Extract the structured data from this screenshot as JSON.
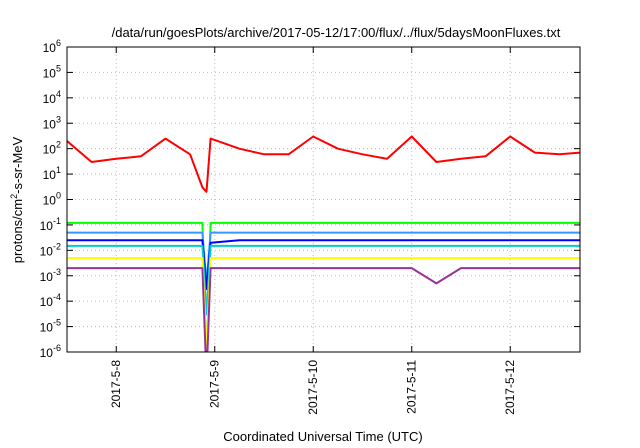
{
  "chart_data": {
    "type": "line",
    "title": "/data/run/goesPlots/archive/2017-05-12/17:00/flux/../flux/5daysMoonFluxes.txt",
    "xlabel": "Coordinated Universal Time (UTC)",
    "ylabel": "protons/cm²-s-sr-MeV",
    "ylabel_parts": {
      "pre": "protons/cm",
      "sup": "2",
      "post": "-s-sr-MeV"
    },
    "yscale": "log",
    "ylim": [
      1e-06,
      1000000.0
    ],
    "xlim": [
      "2017-05-07 12:00",
      "2017-05-12 17:00"
    ],
    "grid": true,
    "x_ticks": [
      "2017-5-8",
      "2017-5-9",
      "2017-5-10",
      "2017-5-11",
      "2017-5-12"
    ],
    "x_tick_dates": [
      "2017-05-08",
      "2017-05-09",
      "2017-05-10",
      "2017-05-11",
      "2017-05-12"
    ],
    "y_ticks": [
      {
        "base": "10",
        "exp": "-6"
      },
      {
        "base": "10",
        "exp": "-5"
      },
      {
        "base": "10",
        "exp": "-4"
      },
      {
        "base": "10",
        "exp": "-3"
      },
      {
        "base": "10",
        "exp": "-2"
      },
      {
        "base": "10",
        "exp": "-1"
      },
      {
        "base": "10",
        "exp": "0"
      },
      {
        "base": "10",
        "exp": "1"
      },
      {
        "base": "10",
        "exp": "2"
      },
      {
        "base": "10",
        "exp": "3"
      },
      {
        "base": "10",
        "exp": "4"
      },
      {
        "base": "10",
        "exp": "5"
      },
      {
        "base": "10",
        "exp": "6"
      }
    ],
    "x": [
      "2017-05-07 12:00",
      "2017-05-07 18:00",
      "2017-05-08 00:00",
      "2017-05-08 06:00",
      "2017-05-08 12:00",
      "2017-05-08 18:00",
      "2017-05-08 21:00",
      "2017-05-08 22:00",
      "2017-05-08 23:00",
      "2017-05-09 06:00",
      "2017-05-09 12:00",
      "2017-05-09 18:00",
      "2017-05-10 00:00",
      "2017-05-10 06:00",
      "2017-05-10 12:00",
      "2017-05-10 18:00",
      "2017-05-11 00:00",
      "2017-05-11 06:00",
      "2017-05-11 12:00",
      "2017-05-11 18:00",
      "2017-05-12 00:00",
      "2017-05-12 06:00",
      "2017-05-12 12:00",
      "2017-05-12 17:00"
    ],
    "series": [
      {
        "color": "#ff0000",
        "values": [
          200,
          30,
          40,
          50,
          250,
          60,
          3,
          2,
          250,
          100,
          60,
          60,
          300,
          100,
          60,
          40,
          300,
          30,
          40,
          50,
          300,
          70,
          60,
          70
        ]
      },
      {
        "color": "#00ff00",
        "values": [
          0.12,
          0.12,
          0.12,
          0.12,
          0.12,
          0.12,
          0.12,
          2e-07,
          0.12,
          0.12,
          0.12,
          0.12,
          0.12,
          0.12,
          0.12,
          0.12,
          0.12,
          0.12,
          0.12,
          0.12,
          0.12,
          0.12,
          0.12,
          0.12
        ]
      },
      {
        "color": "#3399ff",
        "values": [
          0.05,
          0.05,
          0.05,
          0.05,
          0.05,
          0.05,
          0.05,
          0.0005,
          0.05,
          0.05,
          0.05,
          0.05,
          0.05,
          0.05,
          0.05,
          0.05,
          0.05,
          0.05,
          0.05,
          0.05,
          0.05,
          0.05,
          0.05,
          0.05
        ]
      },
      {
        "color": "#0000ff",
        "values": [
          0.025,
          0.025,
          0.025,
          0.025,
          0.025,
          0.025,
          0.025,
          0.0003,
          0.02,
          0.025,
          0.025,
          0.025,
          0.025,
          0.025,
          0.025,
          0.025,
          0.025,
          0.025,
          0.025,
          0.025,
          0.025,
          0.025,
          0.025,
          0.025
        ]
      },
      {
        "color": "#00cccc",
        "values": [
          0.015,
          0.015,
          0.015,
          0.015,
          0.015,
          0.015,
          0.015,
          3e-05,
          0.015,
          0.015,
          0.015,
          0.015,
          0.015,
          0.015,
          0.015,
          0.015,
          0.015,
          0.015,
          0.015,
          0.015,
          0.015,
          0.015,
          0.015,
          0.015
        ]
      },
      {
        "color": "#ffff00",
        "values": [
          0.005,
          0.005,
          0.005,
          0.005,
          0.005,
          0.005,
          0.005,
          1e-06,
          0.005,
          0.005,
          0.005,
          0.005,
          0.005,
          0.005,
          0.005,
          0.005,
          0.005,
          0.005,
          0.005,
          0.005,
          0.005,
          0.005,
          0.005,
          0.005
        ]
      },
      {
        "color": "#993399",
        "values": [
          0.002,
          0.002,
          0.002,
          0.002,
          0.002,
          0.002,
          0.002,
          1e-07,
          0.002,
          0.002,
          0.002,
          0.002,
          0.002,
          0.002,
          0.002,
          0.002,
          0.002,
          0.0005,
          0.002,
          0.002,
          0.002,
          0.002,
          0.002,
          0.002
        ]
      }
    ]
  }
}
